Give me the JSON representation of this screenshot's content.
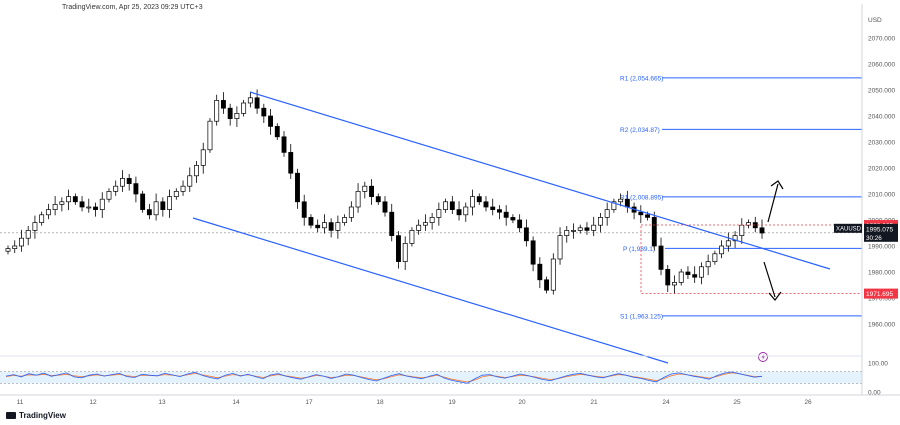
{
  "header": {
    "text": "TradingView.com, Apr 25, 2023 09:29 UTC+3"
  },
  "footer": {
    "logo_text": "TradingView"
  },
  "chart_data": {
    "type": "candlestick",
    "currency_label": "USD",
    "symbol": "XAUUSD",
    "last_price": "1995.075",
    "countdown": "30:26",
    "ylim": [
      1950,
      2080
    ],
    "price_ticks": [
      "2070.000",
      "2060.000",
      "2050.000",
      "2040.000",
      "2030.000",
      "2020.000",
      "2010.000",
      "2000.000",
      "1990.000",
      "1980.000",
      "1970.000",
      "1960.000"
    ],
    "x_ticks": [
      "11",
      "12",
      "13",
      "14",
      "17",
      "18",
      "19",
      "20",
      "21",
      "24",
      "25",
      "26"
    ],
    "levels": [
      {
        "label": "R1 (2,054.665)",
        "value": 2054.665
      },
      {
        "label": "R2 (2,034.87)",
        "value": 2034.87
      },
      {
        "label": "R1 (2,008.895)",
        "value": 2008.895
      },
      {
        "label": "P (1,989.1)",
        "value": 1989.1
      },
      {
        "label": "S1 (1,963.125)",
        "value": 1963.125
      }
    ],
    "price_tags": [
      {
        "text": "1998.065",
        "value": 1998.065
      },
      {
        "text": "1971.695",
        "value": 1971.695
      }
    ],
    "close_series": [
      1989,
      1990,
      1993,
      1996,
      1999,
      2002,
      2004,
      2006,
      2007,
      2009,
      2007,
      2005,
      2005,
      2004,
      2008,
      2011,
      2013,
      2016,
      2014,
      2010,
      2004,
      2002,
      2007,
      2004,
      2009,
      2011,
      2013,
      2017,
      2021,
      2027,
      2038,
      2046,
      2043,
      2039,
      2041,
      2045,
      2047,
      2043,
      2040,
      2036,
      2032,
      2026,
      2018,
      2007,
      2001,
      1998,
      1997,
      1999,
      1996,
      1999,
      2001,
      2005,
      2011,
      2013,
      2009,
      2007,
      2003,
      1994,
      1984,
      1991,
      1996,
      1998,
      1999,
      2001,
      2004,
      2007,
      2004,
      2002,
      2005,
      2009,
      2007,
      2005,
      2004,
      2003,
      2001,
      2000,
      1997,
      1992,
      1983,
      1977,
      1973,
      1985,
      1994,
      1996,
      1996,
      1997,
      1996,
      1998,
      2001,
      2004,
      2007,
      2008,
      2005,
      2003,
      2002,
      2001,
      1990,
      1981,
      1975,
      1976,
      1980,
      1979,
      1978,
      1982,
      1984,
      1987,
      1990,
      1992,
      1994,
      1998,
      1999,
      1997,
      1995
    ],
    "oscillator": {
      "ylim": [
        0,
        100
      ],
      "ticks": [
        "100.00",
        "0.00"
      ],
      "upper_band": 70,
      "lower_band": 30,
      "series_a": [
        55,
        60,
        52,
        63,
        58,
        65,
        54,
        60,
        66,
        52,
        49,
        58,
        62,
        55,
        60,
        64,
        53,
        50,
        61,
        58,
        56,
        64,
        59,
        53,
        62,
        68,
        57,
        50,
        45,
        58,
        64,
        55,
        61,
        53,
        46,
        59,
        63,
        55,
        49,
        44,
        52,
        60,
        55,
        47,
        53,
        62,
        58,
        50,
        43,
        38,
        48,
        57,
        63,
        55,
        50,
        46,
        54,
        61,
        48,
        40,
        35,
        30,
        45,
        58,
        60,
        52,
        48,
        55,
        62,
        57,
        50,
        43,
        39,
        47,
        55,
        61,
        64,
        58,
        52,
        49,
        57,
        63,
        58,
        51,
        47,
        40,
        35,
        50,
        62,
        66,
        60,
        54,
        50,
        44,
        56,
        65,
        69,
        63,
        57,
        51,
        54
      ],
      "series_b": [
        53,
        57,
        55,
        59,
        58,
        61,
        57,
        58,
        61,
        56,
        53,
        56,
        59,
        56,
        58,
        61,
        56,
        53,
        58,
        57,
        56,
        60,
        58,
        55,
        59,
        64,
        59,
        54,
        49,
        55,
        60,
        57,
        59,
        55,
        50,
        56,
        60,
        56,
        52,
        48,
        51,
        57,
        55,
        50,
        52,
        58,
        57,
        52,
        47,
        42,
        46,
        53,
        59,
        56,
        52,
        49,
        52,
        58,
        51,
        44,
        39,
        35,
        41,
        52,
        57,
        54,
        50,
        53,
        58,
        56,
        52,
        47,
        43,
        46,
        52,
        57,
        61,
        58,
        54,
        51,
        55,
        60,
        58,
        53,
        49,
        44,
        39,
        46,
        56,
        62,
        60,
        56,
        52,
        48,
        53,
        61,
        66,
        63,
        58,
        53,
        54
      ]
    },
    "overlays": [
      "descending channel upper line",
      "descending channel lower line",
      "dotted range box 1998.065 - 1971.695",
      "arrow up",
      "arrow down"
    ]
  },
  "colors": {
    "channel": "#2962ff",
    "bull": "#ffffff",
    "bear": "#000000",
    "level_line": "#2962ff",
    "level_text": "#2962ff",
    "tag_red": "#f23645",
    "range_box": "#f23645",
    "osc_a": "#2962ff",
    "osc_b": "#f77c2e",
    "osc_band_fill": "#e3f2fd"
  }
}
